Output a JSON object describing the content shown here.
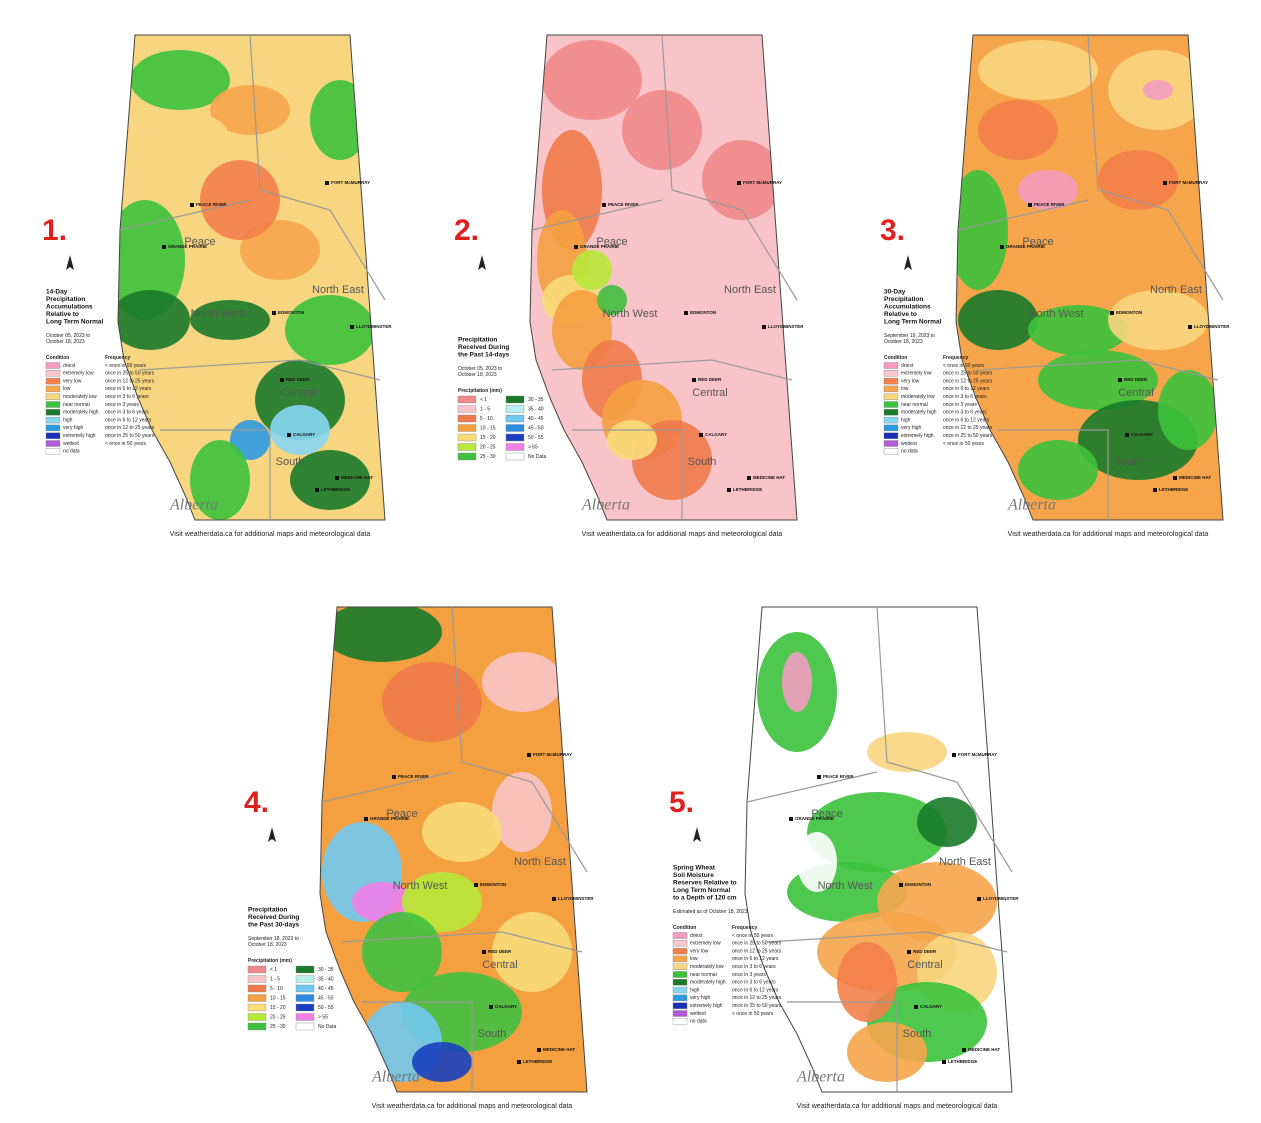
{
  "footer_text": "Visit weatherdata.ca for additional maps and meteorological data",
  "logo": "Alberta",
  "region_names": [
    "Peace",
    "North East",
    "North West",
    "Central",
    "South"
  ],
  "cities": [
    "FORT McMURRAY",
    "PEACE RIVER",
    "GRANDE PRAIRIE",
    "EDMONTON",
    "LLOYDMINSTER",
    "RED DEER",
    "CALGARY",
    "MEDICINE HAT",
    "LETHBRIDGE"
  ],
  "maps": [
    {
      "number": "1.",
      "title_lines": [
        "14-Day",
        "Precipitation",
        "Accumulations",
        "Relative to",
        "Long Term Normal"
      ],
      "date_lines": [
        "October 05, 2023 to",
        "October 18, 2023"
      ],
      "legend_kind": "condition",
      "legend_headers": [
        "Condition",
        "Frequency"
      ],
      "legend": [
        {
          "label": "driest",
          "frequency": "< once in 50 years",
          "color": "#f39cc0"
        },
        {
          "label": "extremely low",
          "frequency": "once in 25 to 50 years",
          "color": "#f7c6cf"
        },
        {
          "label": "very low",
          "frequency": "once in 12 to 25 years",
          "color": "#f47f4a"
        },
        {
          "label": "low",
          "frequency": "once in 6 to 12 years",
          "color": "#f6a54a"
        },
        {
          "label": "moderately low",
          "frequency": "once in 3 to 6 years",
          "color": "#f8d680"
        },
        {
          "label": "near normal",
          "frequency": "once in 3 years",
          "color": "#3cc23c"
        },
        {
          "label": "moderately high",
          "frequency": "once in 3 to 6 years",
          "color": "#1a7a2a"
        },
        {
          "label": "high",
          "frequency": "once in 6 to 12 years",
          "color": "#86d6f2"
        },
        {
          "label": "very high",
          "frequency": "once in 12 to 25 years",
          "color": "#2c9ae0"
        },
        {
          "label": "extremely high",
          "frequency": "once in 25 to 50 years",
          "color": "#1a2fb8"
        },
        {
          "label": "wettest",
          "frequency": "< once in 50 years",
          "color": "#b05ad8"
        },
        {
          "label": "no data",
          "color": "#ffffff"
        }
      ]
    },
    {
      "number": "2.",
      "title_lines": [
        "Precipitation",
        "Received During",
        "the Past 14-days"
      ],
      "date_lines": [
        "October 05, 2023 to",
        "October 18, 2023"
      ],
      "legend_kind": "mm",
      "legend_headers": [
        "Precipitation (mm)"
      ],
      "legend": [
        {
          "label": "< 1",
          "color": "#f08a8a"
        },
        {
          "label": "1 - 5",
          "color": "#f9c4c8"
        },
        {
          "label": "5 - 10",
          "color": "#f07a4a"
        },
        {
          "label": "10 - 15",
          "color": "#f5a040"
        },
        {
          "label": "15 - 20",
          "color": "#f8dc7a"
        },
        {
          "label": "20 - 25",
          "color": "#b8e83a"
        },
        {
          "label": "25 - 30",
          "color": "#40c040"
        },
        {
          "label": "30 - 35",
          "color": "#1a7a2a"
        },
        {
          "label": "35 - 40",
          "color": "#b8f0f0"
        },
        {
          "label": "40 - 45",
          "color": "#70c8f0"
        },
        {
          "label": "45 - 50",
          "color": "#2c8ae0"
        },
        {
          "label": "50 - 55",
          "color": "#1a40c0"
        },
        {
          "label": "> 55",
          "color": "#f080e8"
        },
        {
          "label": "No Data",
          "color": "#ffffff"
        }
      ]
    },
    {
      "number": "3.",
      "title_lines": [
        "30-Day",
        "Precipitation",
        "Accumulations",
        "Relative to",
        "Long Term Normal"
      ],
      "date_lines": [
        "September 19, 2023 to",
        "October 18, 2023"
      ],
      "legend_kind": "condition",
      "legend_headers": [
        "Condition",
        "Frequency"
      ],
      "legend": [
        {
          "label": "driest",
          "frequency": "< once in 50 years",
          "color": "#f39cc0"
        },
        {
          "label": "extremely low",
          "frequency": "once in 25 to 50 years",
          "color": "#f7c6cf"
        },
        {
          "label": "very low",
          "frequency": "once in 12 to 25 years",
          "color": "#f47f4a"
        },
        {
          "label": "low",
          "frequency": "once in 6 to 12 years",
          "color": "#f6a54a"
        },
        {
          "label": "moderately low",
          "frequency": "once in 3 to 6 years",
          "color": "#f8d680"
        },
        {
          "label": "near normal",
          "frequency": "once in 3 years",
          "color": "#3cc23c"
        },
        {
          "label": "moderately high",
          "frequency": "once in 3 to 6 years",
          "color": "#1a7a2a"
        },
        {
          "label": "high",
          "frequency": "once in 6 to 12 years",
          "color": "#86d6f2"
        },
        {
          "label": "very high",
          "frequency": "once in 12 to 25 years",
          "color": "#2c9ae0"
        },
        {
          "label": "extremely high",
          "frequency": "once in 25 to 50 years",
          "color": "#1a2fb8"
        },
        {
          "label": "wettest",
          "frequency": "< once in 50 years",
          "color": "#b05ad8"
        },
        {
          "label": "no data",
          "color": "#ffffff"
        }
      ]
    },
    {
      "number": "4.",
      "title_lines": [
        "Precipitation",
        "Received During",
        "the Past 30-days"
      ],
      "date_lines": [
        "September 18, 2023 to",
        "October 18, 2023"
      ],
      "legend_kind": "mm",
      "legend_headers": [
        "Precipitation (mm)"
      ],
      "legend": [
        {
          "label": "< 1",
          "color": "#f08a8a"
        },
        {
          "label": "1 - 5",
          "color": "#f9c4c8"
        },
        {
          "label": "5 - 10",
          "color": "#f07a4a"
        },
        {
          "label": "10 - 15",
          "color": "#f5a040"
        },
        {
          "label": "15 - 20",
          "color": "#f8dc7a"
        },
        {
          "label": "20 - 25",
          "color": "#b8e83a"
        },
        {
          "label": "25 - 30",
          "color": "#40c040"
        },
        {
          "label": "30 - 35",
          "color": "#1a7a2a"
        },
        {
          "label": "35 - 40",
          "color": "#b8f0f0"
        },
        {
          "label": "40 - 45",
          "color": "#70c8f0"
        },
        {
          "label": "45 - 50",
          "color": "#2c8ae0"
        },
        {
          "label": "50 - 55",
          "color": "#1a40c0"
        },
        {
          "label": "> 55",
          "color": "#f080e8"
        },
        {
          "label": "No Data",
          "color": "#ffffff"
        }
      ]
    },
    {
      "number": "5.",
      "title_lines": [
        "Spring Wheat",
        "Soil Moisture",
        "Reserves Relative to",
        "Long Term Normal",
        "to a Depth of 120 cm"
      ],
      "date_lines": [
        "Estimated as of October 18, 2023"
      ],
      "legend_kind": "condition",
      "legend_headers": [
        "Condition",
        "Frequency"
      ],
      "legend": [
        {
          "label": "driest",
          "frequency": "< once in 50 years",
          "color": "#f39cc0"
        },
        {
          "label": "extremely low",
          "frequency": "once in 25 to 50 years",
          "color": "#f7c6cf"
        },
        {
          "label": "very low",
          "frequency": "once in 12 to 25 years",
          "color": "#f47f4a"
        },
        {
          "label": "low",
          "frequency": "once in 6 to 12 years",
          "color": "#f6a54a"
        },
        {
          "label": "moderately low",
          "frequency": "once in 3 to 6 years",
          "color": "#f8d680"
        },
        {
          "label": "near normal",
          "frequency": "once in 3 years",
          "color": "#3cc23c"
        },
        {
          "label": "moderately high",
          "frequency": "once in 3 to 6 years",
          "color": "#1a7a2a"
        },
        {
          "label": "high",
          "frequency": "once in 6 to 12 years",
          "color": "#86d6f2"
        },
        {
          "label": "very high",
          "frequency": "once in 12 to 25 years",
          "color": "#2c9ae0"
        },
        {
          "label": "extremely high",
          "frequency": "once in 25 to 50 years",
          "color": "#1a2fb8"
        },
        {
          "label": "wettest",
          "frequency": "< once in 50 years",
          "color": "#b05ad8"
        },
        {
          "label": "no data",
          "color": "#ffffff"
        }
      ]
    }
  ]
}
